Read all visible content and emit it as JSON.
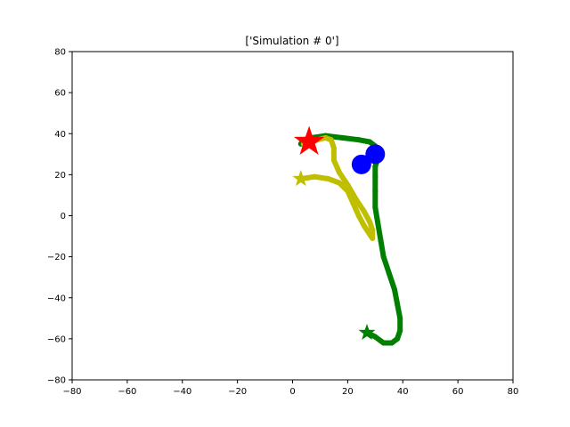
{
  "chart_data": {
    "type": "line",
    "title": "['Simulation # 0']",
    "xlabel": "",
    "ylabel": "",
    "xlim": [
      -80,
      80
    ],
    "ylim": [
      -80,
      80
    ],
    "xticks": [
      -80,
      -60,
      -40,
      -20,
      0,
      20,
      40,
      60,
      80
    ],
    "yticks": [
      -80,
      -60,
      -40,
      -20,
      0,
      20,
      40,
      60,
      80
    ],
    "grid": false,
    "series": [
      {
        "color": "#008000",
        "points": [
          [
            27,
            -57
          ],
          [
            30,
            -59
          ],
          [
            33,
            -62
          ],
          [
            36,
            -62
          ],
          [
            38,
            -60
          ],
          [
            39,
            -56
          ],
          [
            39,
            -50
          ],
          [
            38,
            -43
          ],
          [
            37,
            -36
          ],
          [
            35,
            -28
          ],
          [
            33,
            -20
          ],
          [
            32,
            -12
          ],
          [
            31,
            -4
          ],
          [
            30,
            4
          ],
          [
            30,
            12
          ],
          [
            30,
            19
          ],
          [
            30,
            24
          ],
          [
            31,
            28
          ],
          [
            31,
            31
          ],
          [
            30,
            34
          ],
          [
            28,
            36
          ],
          [
            24,
            37
          ],
          [
            18,
            38
          ],
          [
            12,
            39
          ],
          [
            7,
            38
          ],
          [
            4,
            37
          ],
          [
            3,
            35
          ]
        ]
      },
      {
        "color": "#bfbf00",
        "points": [
          [
            3,
            18
          ],
          [
            8,
            19
          ],
          [
            13,
            18
          ],
          [
            17,
            16
          ],
          [
            20,
            12
          ],
          [
            22,
            6
          ],
          [
            24,
            0
          ],
          [
            26,
            -5
          ],
          [
            28,
            -9
          ],
          [
            29,
            -11
          ],
          [
            29,
            -7
          ],
          [
            28,
            -3
          ],
          [
            26,
            2
          ],
          [
            23,
            8
          ],
          [
            20,
            15
          ],
          [
            17,
            21
          ],
          [
            15,
            27
          ],
          [
            15,
            33
          ],
          [
            14,
            37
          ],
          [
            12,
            38
          ],
          [
            9,
            37
          ],
          [
            6,
            36
          ],
          [
            4,
            35
          ]
        ]
      },
      {
        "color": "#0000ff",
        "points": [
          [
            26,
            25
          ],
          [
            29,
            29
          ]
        ]
      }
    ],
    "markers": [
      {
        "shape": "star",
        "color": "#008000",
        "x": 27,
        "y": -57
      },
      {
        "shape": "star",
        "color": "#bfbf00",
        "x": 3,
        "y": 18
      },
      {
        "shape": "star",
        "color": "#ff0000",
        "x": 6,
        "y": 36
      },
      {
        "shape": "circle",
        "color": "#0000ff",
        "x": 30,
        "y": 30
      },
      {
        "shape": "circle",
        "color": "#0000ff",
        "x": 25,
        "y": 25
      }
    ]
  }
}
